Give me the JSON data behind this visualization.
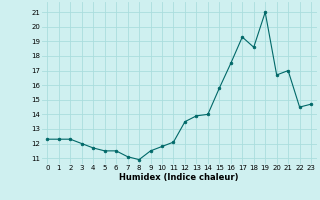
{
  "x": [
    0,
    1,
    2,
    3,
    4,
    5,
    6,
    7,
    8,
    9,
    10,
    11,
    12,
    13,
    14,
    15,
    16,
    17,
    18,
    19,
    20,
    21,
    22,
    23
  ],
  "y": [
    12.3,
    12.3,
    12.3,
    12.0,
    11.7,
    11.5,
    11.5,
    11.1,
    10.9,
    11.5,
    11.8,
    12.1,
    13.5,
    13.9,
    14.0,
    15.8,
    17.5,
    19.3,
    18.6,
    21.0,
    16.7,
    17.0,
    14.5,
    14.7
  ],
  "xlabel": "Humidex (Indice chaleur)",
  "ylim": [
    10.6,
    21.7
  ],
  "yticks": [
    11,
    12,
    13,
    14,
    15,
    16,
    17,
    18,
    19,
    20,
    21
  ],
  "xticks": [
    0,
    1,
    2,
    3,
    4,
    5,
    6,
    7,
    8,
    9,
    10,
    11,
    12,
    13,
    14,
    15,
    16,
    17,
    18,
    19,
    20,
    21,
    22,
    23
  ],
  "xtick_labels": [
    "0",
    "1",
    "2",
    "3",
    "4",
    "5",
    "6",
    "7",
    "8",
    "9",
    "10",
    "11",
    "12",
    "13",
    "14",
    "15",
    "16",
    "17",
    "18",
    "19",
    "20",
    "21",
    "22",
    "23"
  ],
  "line_color": "#006868",
  "marker_color": "#006868",
  "bg_color": "#cff0f0",
  "grid_color": "#aadddd",
  "fig_bg": "#cff0f0",
  "xlabel_fontsize": 6.0,
  "tick_fontsize": 5.0
}
